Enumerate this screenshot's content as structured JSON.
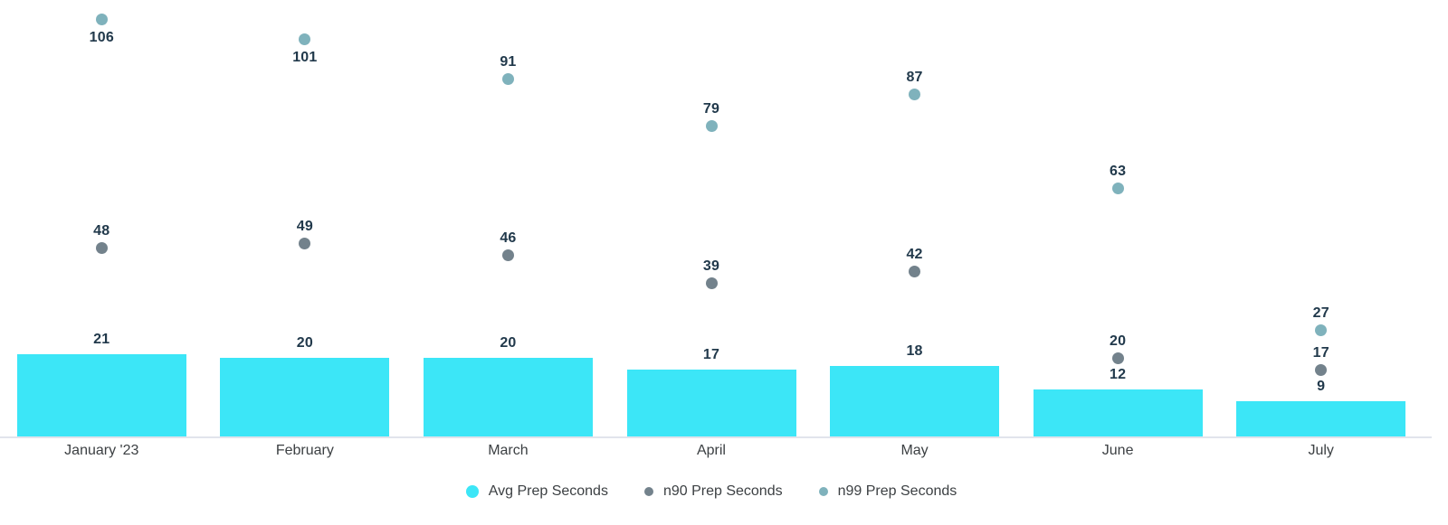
{
  "chart_data": {
    "type": "bar",
    "title": "",
    "xlabel": "",
    "ylabel": "",
    "categories": [
      "January '23",
      "February",
      "March",
      "April",
      "May",
      "June",
      "July"
    ],
    "series": [
      {
        "name": "Avg Prep Seconds",
        "kind": "bar",
        "color": "#3ce6f7",
        "values": [
          21,
          20,
          20,
          17,
          18,
          12,
          9
        ]
      },
      {
        "name": "n90 Prep Seconds",
        "kind": "point",
        "color": "#73828c",
        "values": [
          48,
          49,
          46,
          39,
          42,
          20,
          17
        ]
      },
      {
        "name": "n99 Prep Seconds",
        "kind": "point",
        "color": "#7fb2bc",
        "values": [
          106,
          101,
          91,
          79,
          87,
          63,
          27
        ]
      }
    ],
    "ylim": [
      0,
      110
    ],
    "grid": false,
    "legend_position": "bottom",
    "value_label_color": "#21394b",
    "axis_text_color": "#3c4043",
    "axis_line_color": "#e1e4ec",
    "background_color": "#ffffff"
  }
}
